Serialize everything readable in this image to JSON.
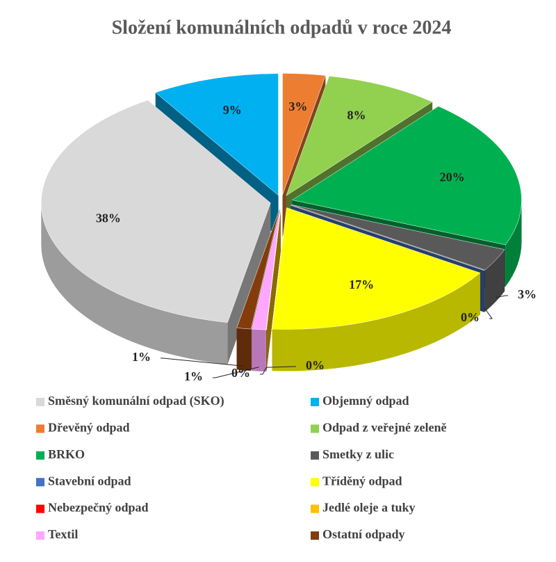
{
  "chart_data": {
    "type": "pie3d",
    "title": "Složení komunálních odpadů v roce 2024",
    "categories": [
      "Směsný komunální odpad (SKO)",
      "Objemný odpad",
      "Dřevěný odpad",
      "Odpad z veřejné zeleně",
      "BRKO",
      "Smetky z ulic",
      "Stavební odpad",
      "Tříděný odpad",
      "Nebezpečný odpad",
      "Jedlé oleje a tuky",
      "Textil",
      "Ostatní odpady"
    ],
    "values": [
      38,
      9,
      3,
      8,
      20,
      3,
      0,
      17,
      0,
      0,
      1,
      1
    ],
    "value_labels": [
      "38%",
      "9%",
      "3%",
      "8%",
      "20%",
      "3%",
      "0%",
      "17%",
      "0%",
      "0%",
      "1%",
      "1%"
    ],
    "colors": [
      "#d9d9d9",
      "#00b0f0",
      "#ed7d31",
      "#92d050",
      "#00b050",
      "#595959",
      "#4472c4",
      "#ffff00",
      "#ff0000",
      "#ffc000",
      "#ffa6ff",
      "#843c0c"
    ],
    "legend": "bottom"
  }
}
